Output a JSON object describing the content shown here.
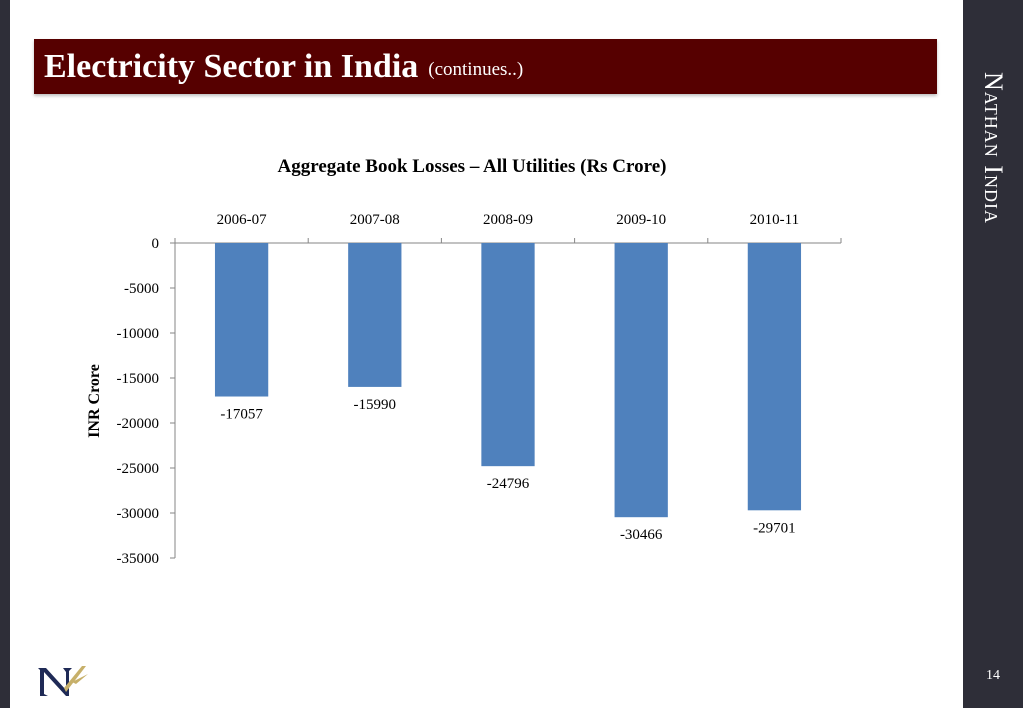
{
  "slide": {
    "title": "Electricity Sector in India",
    "subtitle": "(continues..)",
    "brand": "Nathan India",
    "page_number": "14"
  },
  "colors": {
    "title_bar": "#560000",
    "side_bar": "#2e2e38",
    "bar_fill": "#4f81bd"
  },
  "chart_data": {
    "type": "bar",
    "title": "Aggregate Book Losses – All Utilities (Rs Crore)",
    "ylabel": "INR Crore",
    "xlabel": "",
    "categories": [
      "2006-07",
      "2007-08",
      "2008-09",
      "2009-10",
      "2010-11"
    ],
    "values": [
      -17057,
      -15990,
      -24796,
      -30466,
      -29701
    ],
    "data_labels": [
      "-17057",
      "-15990",
      "-24796",
      "-30466",
      "-29701"
    ],
    "ylim": [
      -35000,
      0
    ],
    "yticks": [
      0,
      -5000,
      -10000,
      -15000,
      -20000,
      -25000,
      -30000,
      -35000
    ],
    "ytick_labels": [
      "0",
      "-5000",
      "-10000",
      "-15000",
      "-20000",
      "-25000",
      "-30000",
      "-35000"
    ],
    "category_axis_position": "top",
    "grid": false,
    "legend": "none"
  }
}
